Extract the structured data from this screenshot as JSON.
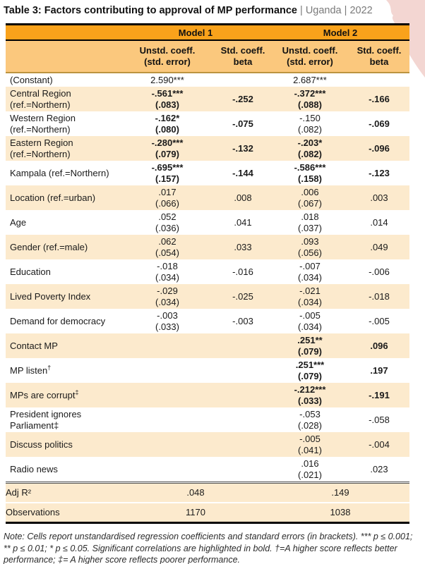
{
  "title": {
    "main": "Table 3: Factors contributing to approval of MP performance",
    "context": " | Uganda | 2022"
  },
  "colors": {
    "header_orange": "#F9A21B",
    "subheader_orange": "#FBC87D",
    "row_stripe": "#FCEACD",
    "header_rule": "#BC9440",
    "corner_pink": "#F3D6D2"
  },
  "table": {
    "model_headers": [
      "Model 1",
      "Model 2"
    ],
    "col_headers": [
      {
        "l1": "Unstd. coeff.",
        "l2": "(std. error)"
      },
      {
        "l1": "Std. coeff.",
        "l2": "beta"
      },
      {
        "l1": "Unstd. coeff.",
        "l2": "(std. error)"
      },
      {
        "l1": "Std. coeff.",
        "l2": "beta"
      }
    ],
    "rows": [
      {
        "label": "(Constant)",
        "sup": "",
        "shaded": false,
        "m1_coef": "2.590***",
        "m1_se": "",
        "m1_bold": false,
        "m1_beta": "",
        "m1_beta_bold": false,
        "m2_coef": "2.687***",
        "m2_se": "",
        "m2_bold": false,
        "m2_beta": "",
        "m2_beta_bold": false
      },
      {
        "label": "Central Region (ref.=Northern)",
        "sup": "",
        "shaded": true,
        "m1_coef": "-.561***",
        "m1_se": "(.083)",
        "m1_bold": true,
        "m1_beta": "-.252",
        "m1_beta_bold": true,
        "m2_coef": "-.372***",
        "m2_se": "(.088)",
        "m2_bold": true,
        "m2_beta": "-.166",
        "m2_beta_bold": true
      },
      {
        "label": "Western Region (ref.=Northern)",
        "sup": "",
        "shaded": false,
        "m1_coef": "-.162*",
        "m1_se": "(.080)",
        "m1_bold": true,
        "m1_beta": "-.075",
        "m1_beta_bold": true,
        "m2_coef": "-.150",
        "m2_se": "(.082)",
        "m2_bold": false,
        "m2_beta": "-.069",
        "m2_beta_bold": true
      },
      {
        "label": "Eastern Region (ref.=Northern)",
        "sup": "",
        "shaded": true,
        "m1_coef": "-.280***",
        "m1_se": "(.079)",
        "m1_bold": true,
        "m1_beta": "-.132",
        "m1_beta_bold": true,
        "m2_coef": "-.203*",
        "m2_se": "(.082)",
        "m2_bold": true,
        "m2_beta": "-.096",
        "m2_beta_bold": true
      },
      {
        "label": "Kampala (ref.=Northern)",
        "sup": "",
        "shaded": false,
        "m1_coef": "-.695***",
        "m1_se": "(.157)",
        "m1_bold": true,
        "m1_beta": "-.144",
        "m1_beta_bold": true,
        "m2_coef": "-.586***",
        "m2_se": "(.158)",
        "m2_bold": true,
        "m2_beta": "-.123",
        "m2_beta_bold": true
      },
      {
        "label": "Location (ref.=urban)",
        "sup": "",
        "shaded": true,
        "m1_coef": ".017",
        "m1_se": "(.066)",
        "m1_bold": false,
        "m1_beta": ".008",
        "m1_beta_bold": false,
        "m2_coef": ".006",
        "m2_se": "(.067)",
        "m2_bold": false,
        "m2_beta": ".003",
        "m2_beta_bold": false
      },
      {
        "label": "Age",
        "sup": "",
        "shaded": false,
        "m1_coef": ".052",
        "m1_se": "(.036)",
        "m1_bold": false,
        "m1_beta": ".041",
        "m1_beta_bold": false,
        "m2_coef": ".018",
        "m2_se": "(.037)",
        "m2_bold": false,
        "m2_beta": ".014",
        "m2_beta_bold": false
      },
      {
        "label": "Gender (ref.=male)",
        "sup": "",
        "shaded": true,
        "m1_coef": ".062",
        "m1_se": "(.054)",
        "m1_bold": false,
        "m1_beta": ".033",
        "m1_beta_bold": false,
        "m2_coef": ".093",
        "m2_se": "(.056)",
        "m2_bold": false,
        "m2_beta": ".049",
        "m2_beta_bold": false
      },
      {
        "label": "Education",
        "sup": "",
        "shaded": false,
        "m1_coef": "-.018",
        "m1_se": "(.034)",
        "m1_bold": false,
        "m1_beta": "-.016",
        "m1_beta_bold": false,
        "m2_coef": "-.007",
        "m2_se": "(.034)",
        "m2_bold": false,
        "m2_beta": "-.006",
        "m2_beta_bold": false
      },
      {
        "label": "Lived Poverty Index",
        "sup": "",
        "shaded": true,
        "m1_coef": "-.029",
        "m1_se": "(.034)",
        "m1_bold": false,
        "m1_beta": "-.025",
        "m1_beta_bold": false,
        "m2_coef": "-.021",
        "m2_se": "(.034)",
        "m2_bold": false,
        "m2_beta": "-.018",
        "m2_beta_bold": false
      },
      {
        "label": "Demand for democracy",
        "sup": "",
        "shaded": false,
        "m1_coef": "-.003",
        "m1_se": "(.033)",
        "m1_bold": false,
        "m1_beta": "-.003",
        "m1_beta_bold": false,
        "m2_coef": "-.005",
        "m2_se": "(.034)",
        "m2_bold": false,
        "m2_beta": "-.005",
        "m2_beta_bold": false
      },
      {
        "label": "Contact MP",
        "sup": "",
        "shaded": true,
        "m1_coef": "",
        "m1_se": "",
        "m1_bold": false,
        "m1_beta": "",
        "m1_beta_bold": false,
        "m2_coef": ".251**",
        "m2_se": "(.079)",
        "m2_bold": true,
        "m2_beta": ".096",
        "m2_beta_bold": true
      },
      {
        "label": "MP listen",
        "sup": "†",
        "shaded": false,
        "m1_coef": "",
        "m1_se": "",
        "m1_bold": false,
        "m1_beta": "",
        "m1_beta_bold": false,
        "m2_coef": ".251***",
        "m2_se": "(.079)",
        "m2_bold": true,
        "m2_beta": ".197",
        "m2_beta_bold": true
      },
      {
        "label": "MPs are corrupt",
        "sup": "‡",
        "shaded": true,
        "m1_coef": "",
        "m1_se": "",
        "m1_bold": false,
        "m1_beta": "",
        "m1_beta_bold": false,
        "m2_coef": "-.212***",
        "m2_se": "(.033)",
        "m2_bold": true,
        "m2_beta": "-.191",
        "m2_beta_bold": true
      },
      {
        "label": "President ignores Parliament‡",
        "sup": "",
        "shaded": false,
        "m1_coef": "",
        "m1_se": "",
        "m1_bold": false,
        "m1_beta": "",
        "m1_beta_bold": false,
        "m2_coef": "-.053",
        "m2_se": "(.028)",
        "m2_bold": false,
        "m2_beta": "-.058",
        "m2_beta_bold": false
      },
      {
        "label": "Discuss politics",
        "sup": "",
        "shaded": true,
        "m1_coef": "",
        "m1_se": "",
        "m1_bold": false,
        "m1_beta": "",
        "m1_beta_bold": false,
        "m2_coef": "-.005",
        "m2_se": "(.041)",
        "m2_bold": false,
        "m2_beta": "-.004",
        "m2_beta_bold": false
      },
      {
        "label": "Radio news",
        "sup": "",
        "shaded": false,
        "m1_coef": "",
        "m1_se": "",
        "m1_bold": false,
        "m1_beta": "",
        "m1_beta_bold": false,
        "m2_coef": ".016",
        "m2_se": "(.021)",
        "m2_bold": false,
        "m2_beta": ".023",
        "m2_beta_bold": false
      }
    ],
    "summary_rows": [
      {
        "label": "Adj R²",
        "model1": ".048",
        "model2": ".149",
        "shaded": true
      },
      {
        "label": "Observations",
        "model1": "1170",
        "model2": "1038",
        "shaded": true
      }
    ]
  },
  "note": "Note: Cells report unstandardised regression coefficients and standard errors (in brackets). *** p ≤ 0.001; ** p ≤ 0.01; * p ≤ 0.05. Significant correlations are highlighted in bold. †=A higher score reflects better performance; ‡= A higher score reflects poorer performance."
}
